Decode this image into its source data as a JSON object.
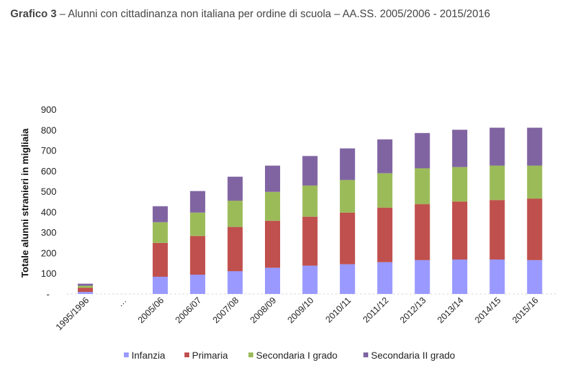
{
  "header": {
    "title_bold": "Grafico 3",
    "title_rest": " – Alunni con cittadinanza non italiana per ordine di scuola – AA.SS. 2005/2006 - 2015/2016"
  },
  "chart_data": {
    "type": "bar",
    "stacked": true,
    "title": "Grafico 3 – Alunni con cittadinanza non italiana per ordine di scuola – AA.SS. 2005/2006 - 2015/2016",
    "xlabel": "",
    "ylabel": "Totale alunni stranieri in migliaia",
    "ylim": [
      0,
      900
    ],
    "yticks": [
      0,
      100,
      200,
      300,
      400,
      500,
      600,
      700,
      800,
      900
    ],
    "ytick_labels": [
      "-",
      "100",
      "200",
      "300",
      "400",
      "500",
      "600",
      "700",
      "800",
      "900"
    ],
    "grid": false,
    "legend_position": "bottom",
    "categories": [
      "1995/1996",
      "…",
      "2005/06",
      "2006/07",
      "2007/08",
      "2008/09",
      "2009/10",
      "2010/11",
      "2011/12",
      "2012/13",
      "2013/14",
      "2014/15",
      "2015/16"
    ],
    "series": [
      {
        "name": "Infanzia",
        "color": "#9999ff",
        "values": [
          10,
          0,
          84,
          94,
          111,
          128,
          138,
          145,
          155,
          165,
          168,
          168,
          165
        ]
      },
      {
        "name": "Primaria",
        "color": "#c0504d",
        "values": [
          20,
          0,
          165,
          189,
          216,
          229,
          239,
          252,
          266,
          273,
          283,
          290,
          300
        ]
      },
      {
        "name": "Secondaria I grado",
        "color": "#9bbb59",
        "values": [
          10,
          0,
          101,
          114,
          128,
          141,
          152,
          159,
          168,
          175,
          168,
          168,
          161
        ]
      },
      {
        "name": "Secondaria II grado",
        "color": "#8064a2",
        "values": [
          10,
          0,
          78,
          105,
          117,
          128,
          144,
          154,
          165,
          172,
          182,
          185,
          185
        ]
      }
    ]
  }
}
